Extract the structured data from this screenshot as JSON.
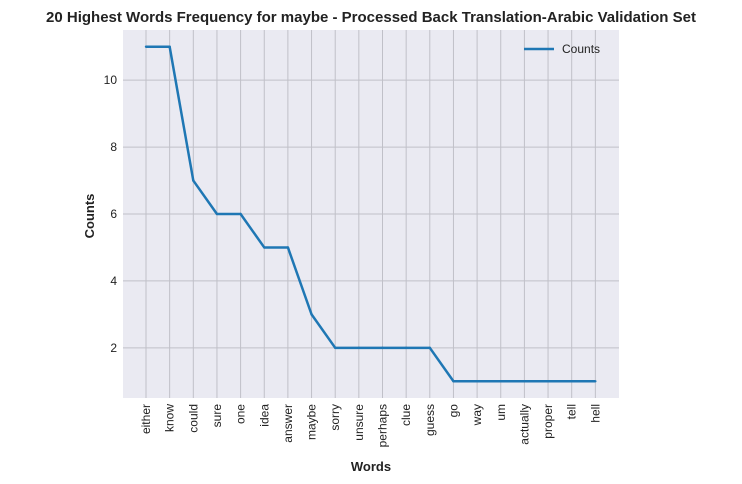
{
  "chart_data": {
    "type": "line",
    "title": "20 Highest Words Frequency for maybe - Processed Back Translation-Arabic Validation Set",
    "xlabel": "Words",
    "ylabel": "Counts",
    "categories": [
      "either",
      "know",
      "could",
      "sure",
      "one",
      "idea",
      "answer",
      "maybe",
      "sorry",
      "unsure",
      "perhaps",
      "clue",
      "guess",
      "go",
      "way",
      "um",
      "actually",
      "proper",
      "tell",
      "hell"
    ],
    "series": [
      {
        "name": "Counts",
        "values": [
          11,
          11,
          7,
          6,
          6,
          5,
          5,
          3,
          2,
          2,
          2,
          2,
          2,
          1,
          1,
          1,
          1,
          1,
          1,
          1
        ],
        "color": "#1f77b4"
      }
    ],
    "ylim": [
      0.5,
      11.5
    ],
    "yticks": [
      2,
      4,
      6,
      8,
      10
    ],
    "grid": true,
    "legend": "top-right",
    "background": "#eaeaf2",
    "grid_color": "#c0c0c8"
  }
}
